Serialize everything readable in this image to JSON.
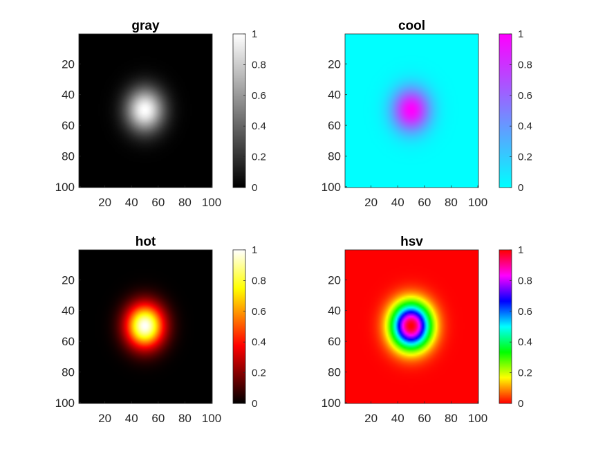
{
  "chart_data": [
    {
      "type": "heatmap",
      "title": "gray",
      "colormap": "gray",
      "data": {
        "rows": 100,
        "cols": 100,
        "peak_row": 50,
        "peak_col": 50,
        "peak_value": 1,
        "background_value": 0,
        "shape": "gaussian"
      },
      "xticks": [
        "20",
        "40",
        "60",
        "80",
        "100"
      ],
      "yticks": [
        "20",
        "40",
        "60",
        "80",
        "100"
      ],
      "xlim": [
        0.5,
        100.5
      ],
      "ylim": [
        0.5,
        100.5
      ],
      "colorbar": {
        "range": [
          0,
          1
        ],
        "ticks": [
          "0",
          "0.2",
          "0.4",
          "0.6",
          "0.8",
          "1"
        ]
      }
    },
    {
      "type": "heatmap",
      "title": "cool",
      "colormap": "cool",
      "data": {
        "rows": 100,
        "cols": 100,
        "peak_row": 50,
        "peak_col": 50,
        "peak_value": 1,
        "background_value": 0,
        "shape": "gaussian"
      },
      "xticks": [
        "20",
        "40",
        "60",
        "80",
        "100"
      ],
      "yticks": [
        "20",
        "40",
        "60",
        "80",
        "100"
      ],
      "xlim": [
        0.5,
        100.5
      ],
      "ylim": [
        0.5,
        100.5
      ],
      "colorbar": {
        "range": [
          0,
          1
        ],
        "ticks": [
          "0",
          "0.2",
          "0.4",
          "0.6",
          "0.8",
          "1"
        ]
      }
    },
    {
      "type": "heatmap",
      "title": "hot",
      "colormap": "hot",
      "data": {
        "rows": 100,
        "cols": 100,
        "peak_row": 50,
        "peak_col": 50,
        "peak_value": 1,
        "background_value": 0,
        "shape": "gaussian"
      },
      "xticks": [
        "20",
        "40",
        "60",
        "80",
        "100"
      ],
      "yticks": [
        "20",
        "40",
        "60",
        "80",
        "100"
      ],
      "xlim": [
        0.5,
        100.5
      ],
      "ylim": [
        0.5,
        100.5
      ],
      "colorbar": {
        "range": [
          0,
          1
        ],
        "ticks": [
          "0",
          "0.2",
          "0.4",
          "0.6",
          "0.8",
          "1"
        ]
      }
    },
    {
      "type": "heatmap",
      "title": "hsv",
      "colormap": "hsv",
      "data": {
        "rows": 100,
        "cols": 100,
        "peak_row": 50,
        "peak_col": 50,
        "peak_value": 1,
        "background_value": 0,
        "shape": "gaussian"
      },
      "xticks": [
        "20",
        "40",
        "60",
        "80",
        "100"
      ],
      "yticks": [
        "20",
        "40",
        "60",
        "80",
        "100"
      ],
      "xlim": [
        0.5,
        100.5
      ],
      "ylim": [
        0.5,
        100.5
      ],
      "colorbar": {
        "range": [
          0,
          1
        ],
        "ticks": [
          "0",
          "0.2",
          "0.4",
          "0.6",
          "0.8",
          "1"
        ]
      }
    }
  ]
}
